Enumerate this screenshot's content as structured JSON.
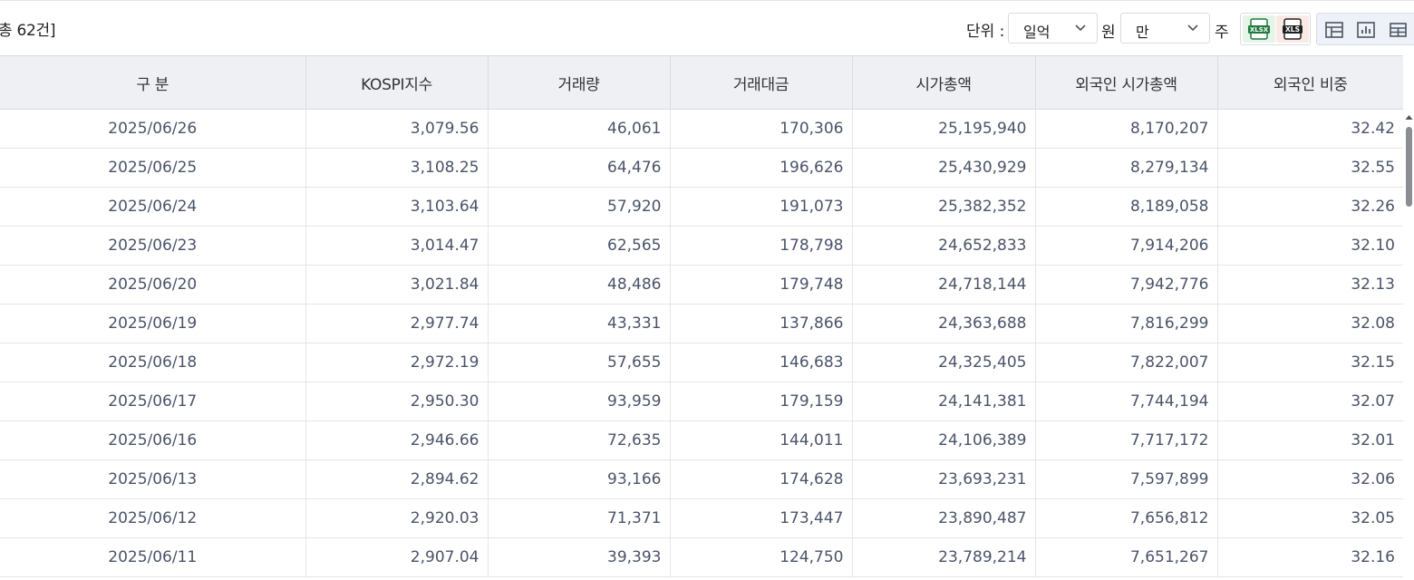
{
  "toolbar": {
    "count_text": "총 62건]",
    "unit_label": "단위 :",
    "unit_select": "일억",
    "won_label": "원",
    "price_select": "만",
    "ju_label": "주",
    "xlsx_label": "XLSX",
    "xls_label": "XLS"
  },
  "table": {
    "headers": [
      "구 분",
      "KOSPI지수",
      "거래량",
      "거래대금",
      "시가총액",
      "외국인 시가총액",
      "외국인 비중"
    ],
    "rows": [
      [
        "2025/06/26",
        "3,079.56",
        "46,061",
        "170,306",
        "25,195,940",
        "8,170,207",
        "32.42"
      ],
      [
        "2025/06/25",
        "3,108.25",
        "64,476",
        "196,626",
        "25,430,929",
        "8,279,134",
        "32.55"
      ],
      [
        "2025/06/24",
        "3,103.64",
        "57,920",
        "191,073",
        "25,382,352",
        "8,189,058",
        "32.26"
      ],
      [
        "2025/06/23",
        "3,014.47",
        "62,565",
        "178,798",
        "24,652,833",
        "7,914,206",
        "32.10"
      ],
      [
        "2025/06/20",
        "3,021.84",
        "48,486",
        "179,748",
        "24,718,144",
        "7,942,776",
        "32.13"
      ],
      [
        "2025/06/19",
        "2,977.74",
        "43,331",
        "137,866",
        "24,363,688",
        "7,816,299",
        "32.08"
      ],
      [
        "2025/06/18",
        "2,972.19",
        "57,655",
        "146,683",
        "24,325,405",
        "7,822,007",
        "32.15"
      ],
      [
        "2025/06/17",
        "2,950.30",
        "93,959",
        "179,159",
        "24,141,381",
        "7,744,194",
        "32.07"
      ],
      [
        "2025/06/16",
        "2,946.66",
        "72,635",
        "144,011",
        "24,106,389",
        "7,717,172",
        "32.01"
      ],
      [
        "2025/06/13",
        "2,894.62",
        "93,166",
        "174,628",
        "23,693,231",
        "7,597,899",
        "32.06"
      ],
      [
        "2025/06/12",
        "2,920.03",
        "71,371",
        "173,447",
        "23,890,487",
        "7,656,812",
        "32.05"
      ],
      [
        "2025/06/11",
        "2,907.04",
        "39,393",
        "124,750",
        "23,789,214",
        "7,651,267",
        "32.16"
      ]
    ]
  },
  "colors": {
    "header_bg": "#eef0f3",
    "cell_text": "#4a5368",
    "xlsx_green": "#1e7b3c",
    "xls_red": "#c0392b"
  }
}
